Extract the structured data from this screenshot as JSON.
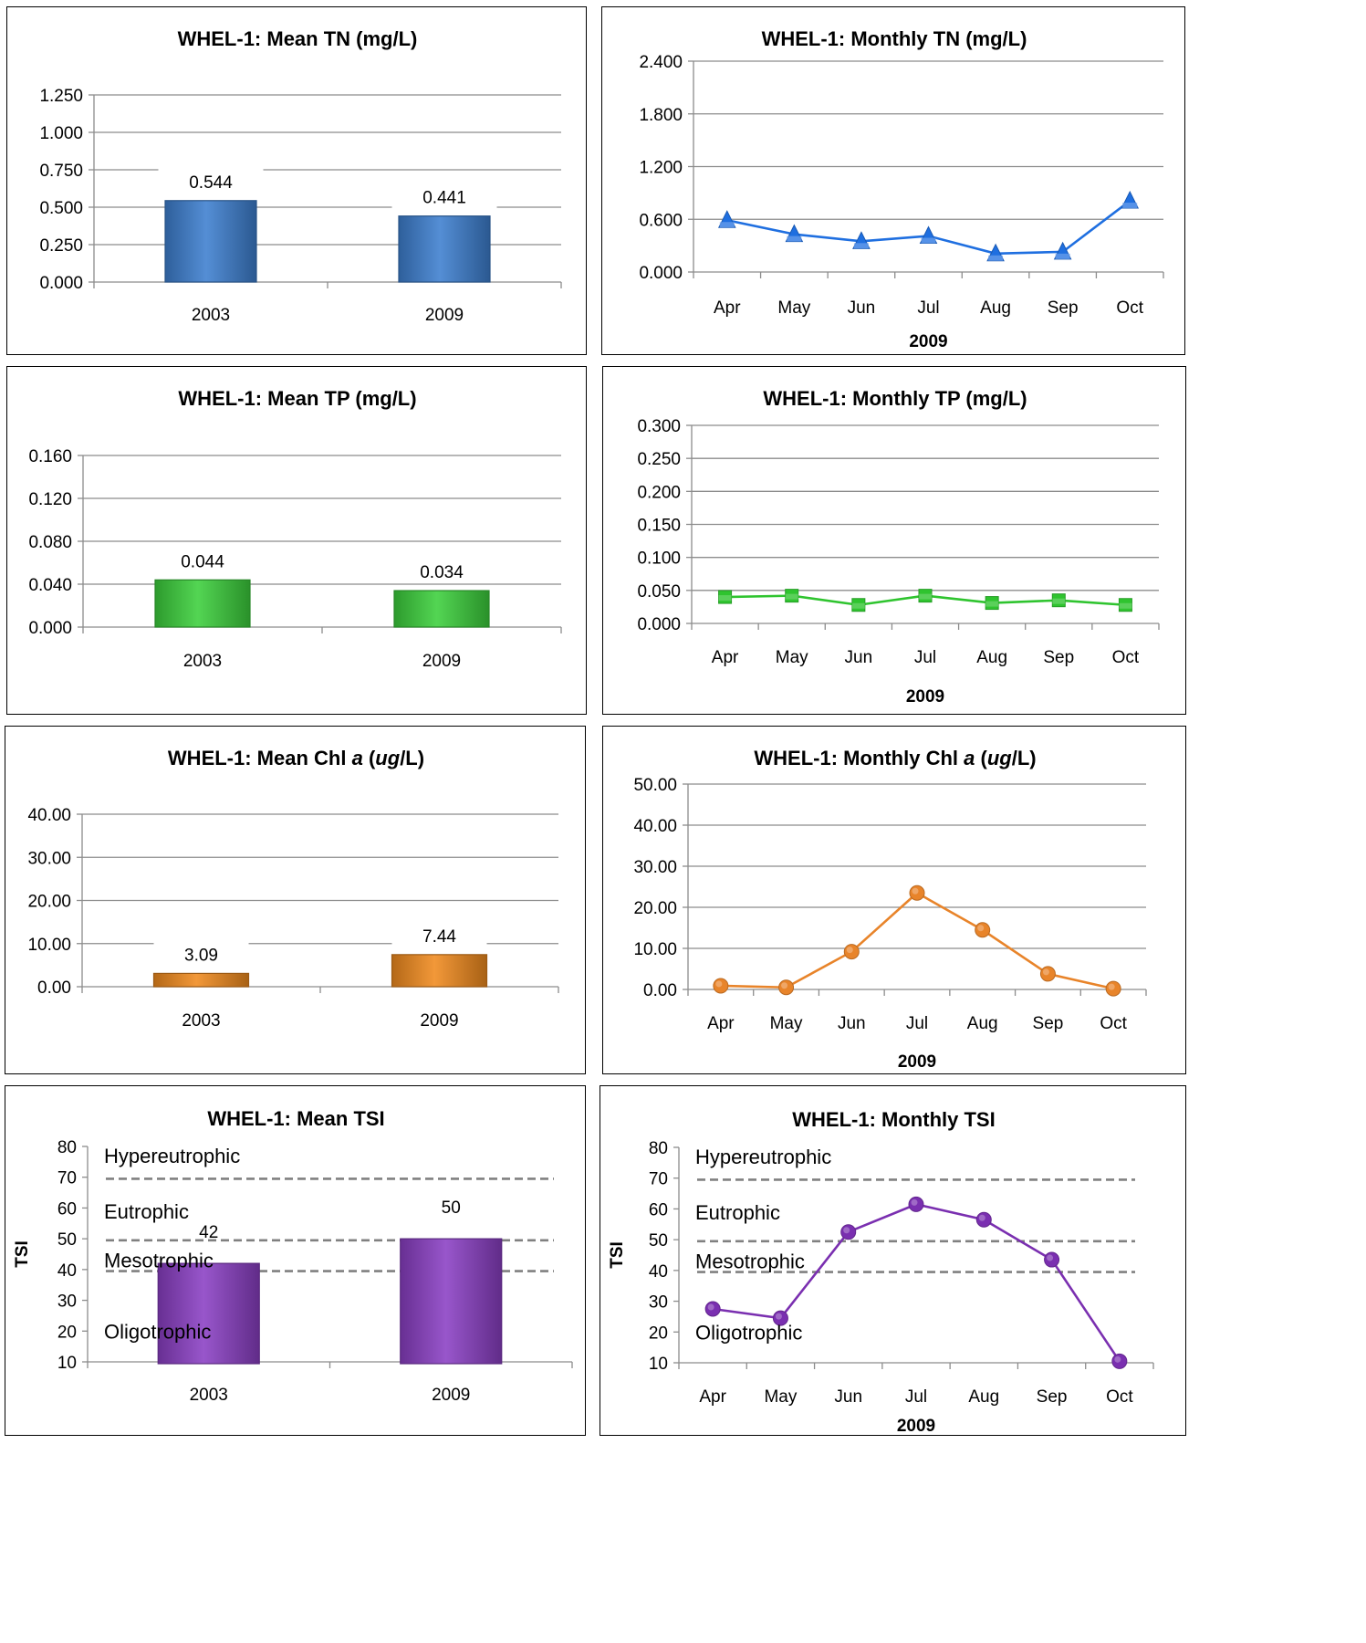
{
  "chart_data": [
    {
      "id": "mean-tn",
      "type": "bar",
      "title": "WHEL-1: Mean TN (mg/L)",
      "categories": [
        "2003",
        "2009"
      ],
      "values": [
        0.544,
        0.441
      ],
      "data_labels": [
        "0.544",
        "0.441"
      ],
      "yticks": [
        "0.000",
        "0.250",
        "0.500",
        "0.750",
        "1.000",
        "1.250"
      ],
      "ylim": [
        0,
        1.25
      ],
      "color": "#3d7fcf",
      "grid": true
    },
    {
      "id": "monthly-tn",
      "type": "line",
      "title": "WHEL-1: Monthly TN (mg/L)",
      "categories": [
        "Apr",
        "May",
        "Jun",
        "Jul",
        "Aug",
        "Sep",
        "Oct"
      ],
      "values": [
        0.59,
        0.43,
        0.35,
        0.41,
        0.21,
        0.23,
        0.81
      ],
      "xlabel": "2009",
      "yticks": [
        "0.000",
        "0.600",
        "1.200",
        "1.800",
        "2.400"
      ],
      "ylim": [
        0,
        2.4
      ],
      "marker": "triangle",
      "color": "#1f6fe0",
      "grid": true
    },
    {
      "id": "mean-tp",
      "type": "bar",
      "title": "WHEL-1: Mean TP (mg/L)",
      "categories": [
        "2003",
        "2009"
      ],
      "values": [
        0.044,
        0.034
      ],
      "data_labels": [
        "0.044",
        "0.034"
      ],
      "yticks": [
        "0.000",
        "0.040",
        "0.080",
        "0.120",
        "0.160"
      ],
      "ylim": [
        0,
        0.16
      ],
      "color": "#3ccf3c",
      "grid": true
    },
    {
      "id": "monthly-tp",
      "type": "line",
      "title": "WHEL-1: Monthly TP (mg/L)",
      "categories": [
        "Apr",
        "May",
        "Jun",
        "Jul",
        "Aug",
        "Sep",
        "Oct"
      ],
      "values": [
        0.04,
        0.042,
        0.028,
        0.042,
        0.031,
        0.035,
        0.028
      ],
      "xlabel": "2009",
      "yticks": [
        "0.000",
        "0.050",
        "0.100",
        "0.150",
        "0.200",
        "0.250",
        "0.300"
      ],
      "ylim": [
        0,
        0.3
      ],
      "marker": "square",
      "color": "#2fc42f",
      "grid": true
    },
    {
      "id": "mean-chl",
      "type": "bar",
      "title": "WHEL-1: Mean Chl a (ug/L)",
      "categories": [
        "2003",
        "2009"
      ],
      "values": [
        3.09,
        7.44
      ],
      "data_labels": [
        "3.09",
        "7.44"
      ],
      "yticks": [
        "0.00",
        "10.00",
        "20.00",
        "30.00",
        "40.00"
      ],
      "ylim": [
        0,
        40
      ],
      "color": "#f08a1e",
      "grid": true
    },
    {
      "id": "monthly-chl",
      "type": "line",
      "title": "WHEL-1: Monthly Chl a (ug/L)",
      "categories": [
        "Apr",
        "May",
        "Jun",
        "Jul",
        "Aug",
        "Sep",
        "Oct"
      ],
      "values": [
        0.9,
        0.5,
        9.2,
        23.5,
        14.5,
        3.8,
        0.2
      ],
      "xlabel": "2009",
      "yticks": [
        "0.00",
        "10.00",
        "20.00",
        "30.00",
        "40.00",
        "50.00"
      ],
      "ylim": [
        0,
        50
      ],
      "marker": "circle",
      "color": "#e8842a",
      "grid": true
    },
    {
      "id": "mean-tsi",
      "type": "bar",
      "title": "WHEL-1: Mean TSI",
      "categories": [
        "2003",
        "2009"
      ],
      "values": [
        42,
        50
      ],
      "data_labels": [
        "42",
        "50"
      ],
      "ylabel": "TSI",
      "yticks": [
        "10",
        "20",
        "30",
        "40",
        "50",
        "60",
        "70",
        "80"
      ],
      "ylim": [
        10,
        80
      ],
      "color": "#8a3fc4",
      "grid": false,
      "thresholds": [
        40,
        50,
        70
      ],
      "zones": [
        {
          "label": "Hypereutrophic",
          "y": 77
        },
        {
          "label": "Eutrophic",
          "y": 59
        },
        {
          "label": "Mesotrophic",
          "y": 43
        },
        {
          "label": "Oligotrophic",
          "y": 20
        }
      ]
    },
    {
      "id": "monthly-tsi",
      "type": "line",
      "title": "WHEL-1: Monthly TSI",
      "categories": [
        "Apr",
        "May",
        "Jun",
        "Jul",
        "Aug",
        "Sep",
        "Oct"
      ],
      "values": [
        27.5,
        24.5,
        52.5,
        61.5,
        56.5,
        43.5,
        10.5
      ],
      "xlabel": "2009",
      "ylabel": "TSI",
      "yticks": [
        "10",
        "20",
        "30",
        "40",
        "50",
        "60",
        "70",
        "80"
      ],
      "ylim": [
        10,
        80
      ],
      "marker": "circle",
      "color": "#7a2fb0",
      "grid": false,
      "thresholds": [
        40,
        50,
        70
      ],
      "zones": [
        {
          "label": "Hypereutrophic",
          "y": 77
        },
        {
          "label": "Eutrophic",
          "y": 59
        },
        {
          "label": "Mesotrophic",
          "y": 43
        },
        {
          "label": "Oligotrophic",
          "y": 20
        }
      ]
    }
  ]
}
